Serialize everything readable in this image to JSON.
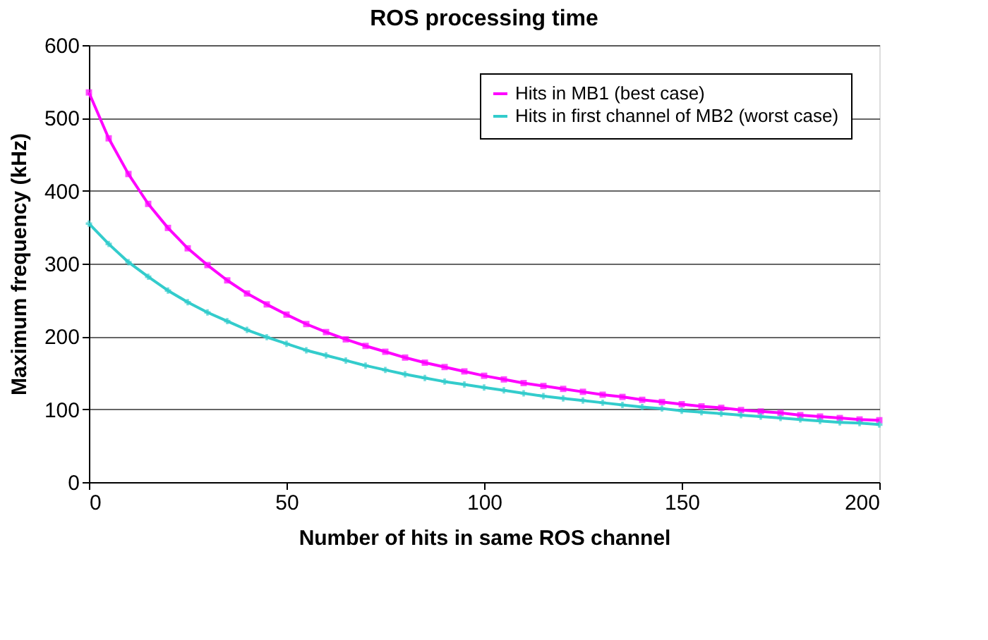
{
  "chart_data": {
    "type": "line",
    "title": "ROS processing time",
    "xlabel": "Number of hits in same ROS channel",
    "ylabel": "Maximum frequency (kHz)",
    "x": [
      0,
      5,
      10,
      15,
      20,
      25,
      30,
      35,
      40,
      45,
      50,
      55,
      60,
      65,
      70,
      75,
      80,
      85,
      90,
      95,
      100,
      105,
      110,
      115,
      120,
      125,
      130,
      135,
      140,
      145,
      150,
      155,
      160,
      165,
      170,
      175,
      180,
      185,
      190,
      195,
      200
    ],
    "series": [
      {
        "name": "Hits in MB1 (best case)",
        "color": "#ff00ff",
        "marker": "square",
        "values": [
          535,
          472,
          423,
          382,
          349,
          321,
          298,
          277,
          259,
          244,
          230,
          217,
          206,
          196,
          187,
          179,
          171,
          164,
          158,
          152,
          146,
          141,
          136,
          132,
          128,
          124,
          120,
          117,
          113,
          110,
          107,
          104,
          102,
          99,
          97,
          95,
          92,
          90,
          88,
          86,
          85
        ]
      },
      {
        "name": "Hits in first channel of MB2 (worst case)",
        "color": "#33cccc",
        "marker": "cross",
        "values": [
          355,
          327,
          302,
          282,
          263,
          247,
          233,
          221,
          209,
          199,
          190,
          181,
          174,
          167,
          160,
          154,
          148,
          143,
          138,
          134,
          130,
          126,
          122,
          118,
          115,
          112,
          109,
          106,
          103,
          101,
          98,
          96,
          94,
          92,
          90,
          88,
          86,
          84,
          82,
          81,
          79
        ]
      }
    ],
    "xlim": [
      0,
      200
    ],
    "xticks": [
      0,
      50,
      100,
      150,
      200
    ],
    "ylim": [
      0,
      600
    ],
    "yticks": [
      0,
      100,
      200,
      300,
      400,
      500,
      600
    ],
    "grid": "y",
    "legend": "top right",
    "line_style": "solid"
  }
}
